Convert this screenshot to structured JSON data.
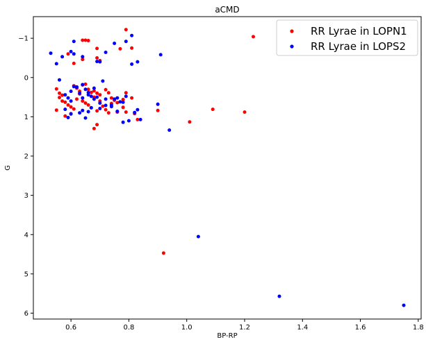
{
  "chart_data": {
    "type": "scatter",
    "title": "aCMD",
    "xlabel": "BP-RP",
    "ylabel": "G",
    "xlim": [
      0.47,
      1.81
    ],
    "ylim": [
      6.15,
      -1.55
    ],
    "y_inverted": true,
    "x_ticks": [
      0.6,
      0.8,
      1.0,
      1.2,
      1.4,
      1.6,
      1.8
    ],
    "x_tick_labels": [
      "0.6",
      "0.8",
      "1.0",
      "1.2",
      "1.4",
      "1.6",
      "1.8"
    ],
    "y_ticks": [
      -1,
      0,
      1,
      2,
      3,
      4,
      5,
      6
    ],
    "y_tick_labels": [
      "−1",
      "0",
      "1",
      "2",
      "3",
      "4",
      "5",
      "6"
    ],
    "grid": false,
    "legend_position": "top-right",
    "series": [
      {
        "name": "RR Lyrae in LOPN1",
        "color": "#ff0000",
        "points": [
          [
            0.79,
            -1.22
          ],
          [
            1.23,
            -1.04
          ],
          [
            0.64,
            -0.95
          ],
          [
            0.65,
            -0.95
          ],
          [
            0.66,
            -0.94
          ],
          [
            0.81,
            -0.75
          ],
          [
            0.77,
            -0.73
          ],
          [
            0.69,
            -0.74
          ],
          [
            0.59,
            -0.6
          ],
          [
            0.69,
            -0.5
          ],
          [
            0.7,
            -0.43
          ],
          [
            0.61,
            -0.36
          ],
          [
            0.64,
            -0.46
          ],
          [
            0.61,
            0.21
          ],
          [
            0.62,
            0.27
          ],
          [
            0.63,
            0.35
          ],
          [
            0.64,
            0.19
          ],
          [
            0.65,
            0.17
          ],
          [
            0.66,
            0.3
          ],
          [
            0.67,
            0.38
          ],
          [
            0.68,
            0.34
          ],
          [
            0.69,
            0.4
          ],
          [
            0.7,
            0.44
          ],
          [
            0.72,
            0.31
          ],
          [
            0.73,
            0.39
          ],
          [
            0.74,
            0.52
          ],
          [
            0.75,
            0.58
          ],
          [
            0.76,
            0.64
          ],
          [
            0.78,
            0.56
          ],
          [
            0.79,
            0.39
          ],
          [
            0.81,
            0.52
          ],
          [
            0.55,
            0.29
          ],
          [
            0.56,
            0.4
          ],
          [
            0.56,
            0.51
          ],
          [
            0.57,
            0.6
          ],
          [
            0.58,
            0.63
          ],
          [
            0.59,
            0.7
          ],
          [
            0.6,
            0.75
          ],
          [
            0.61,
            0.8
          ],
          [
            0.55,
            0.83
          ],
          [
            0.58,
            0.98
          ],
          [
            0.6,
            0.92
          ],
          [
            0.62,
            0.55
          ],
          [
            0.64,
            0.6
          ],
          [
            0.66,
            0.7
          ],
          [
            0.67,
            0.77
          ],
          [
            0.69,
            0.85
          ],
          [
            0.7,
            0.6
          ],
          [
            0.72,
            0.82
          ],
          [
            0.74,
            0.66
          ],
          [
            0.76,
            0.88
          ],
          [
            0.78,
            0.76
          ],
          [
            0.79,
            0.88
          ],
          [
            0.82,
            0.92
          ],
          [
            0.83,
            1.07
          ],
          [
            0.68,
            1.3
          ],
          [
            0.69,
            1.2
          ],
          [
            0.9,
            0.84
          ],
          [
            0.73,
            0.9
          ],
          [
            1.01,
            1.13
          ],
          [
            1.09,
            0.81
          ],
          [
            1.2,
            0.88
          ],
          [
            0.92,
            4.47
          ],
          [
            0.63,
            0.42
          ],
          [
            0.68,
            0.5
          ],
          [
            0.57,
            0.45
          ],
          [
            0.65,
            0.65
          ],
          [
            0.71,
            0.73
          ]
        ]
      },
      {
        "name": "RR Lyrae in LOPS2",
        "color": "#0000ff",
        "points": [
          [
            0.61,
            -0.92
          ],
          [
            0.53,
            -0.62
          ],
          [
            0.57,
            -0.53
          ],
          [
            0.6,
            -0.66
          ],
          [
            0.61,
            -0.6
          ],
          [
            0.55,
            -0.35
          ],
          [
            0.56,
            0.06
          ],
          [
            0.64,
            -0.53
          ],
          [
            0.69,
            -0.41
          ],
          [
            0.7,
            -0.4
          ],
          [
            0.72,
            -0.64
          ],
          [
            0.75,
            -0.87
          ],
          [
            0.79,
            -0.92
          ],
          [
            0.81,
            -1.07
          ],
          [
            0.81,
            -0.34
          ],
          [
            0.83,
            -0.4
          ],
          [
            0.91,
            -0.58
          ],
          [
            0.71,
            0.09
          ],
          [
            0.62,
            0.25
          ],
          [
            0.6,
            0.35
          ],
          [
            0.58,
            0.44
          ],
          [
            0.59,
            0.52
          ],
          [
            0.6,
            0.6
          ],
          [
            0.62,
            0.24
          ],
          [
            0.63,
            0.4
          ],
          [
            0.64,
            0.52
          ],
          [
            0.65,
            0.3
          ],
          [
            0.66,
            0.44
          ],
          [
            0.67,
            0.48
          ],
          [
            0.68,
            0.55
          ],
          [
            0.69,
            0.5
          ],
          [
            0.7,
            0.65
          ],
          [
            0.72,
            0.55
          ],
          [
            0.74,
            0.7
          ],
          [
            0.75,
            0.55
          ],
          [
            0.76,
            0.52
          ],
          [
            0.77,
            0.62
          ],
          [
            0.78,
            0.63
          ],
          [
            0.79,
            0.48
          ],
          [
            0.58,
            0.81
          ],
          [
            0.59,
            1.02
          ],
          [
            0.6,
            0.93
          ],
          [
            0.63,
            0.9
          ],
          [
            0.64,
            0.84
          ],
          [
            0.65,
            1.03
          ],
          [
            0.66,
            0.87
          ],
          [
            0.67,
            0.77
          ],
          [
            0.7,
            0.79
          ],
          [
            0.72,
            0.71
          ],
          [
            0.74,
            0.74
          ],
          [
            0.76,
            0.86
          ],
          [
            0.78,
            1.14
          ],
          [
            0.8,
            1.1
          ],
          [
            0.82,
            0.89
          ],
          [
            0.83,
            0.82
          ],
          [
            0.84,
            1.07
          ],
          [
            0.9,
            0.68
          ],
          [
            0.94,
            1.34
          ],
          [
            1.04,
            4.05
          ],
          [
            1.32,
            5.57
          ],
          [
            1.75,
            5.8
          ],
          [
            0.61,
            0.23
          ],
          [
            0.64,
            0.18
          ],
          [
            0.66,
            0.38
          ],
          [
            0.68,
            0.27
          ]
        ]
      }
    ]
  }
}
